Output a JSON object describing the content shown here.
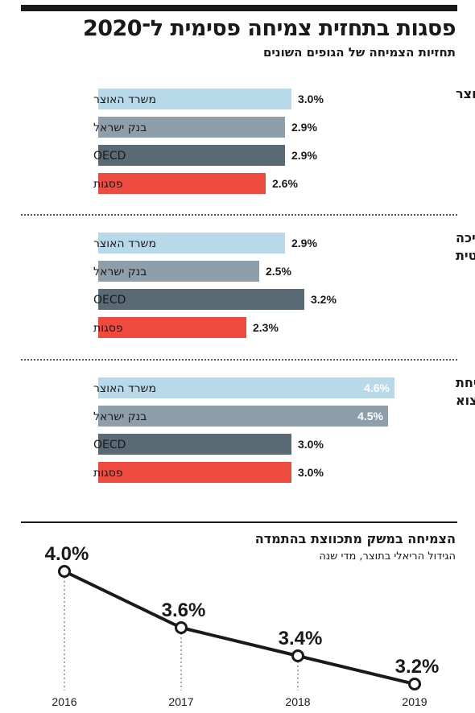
{
  "title": "פסגות בתחזית צמיחה פסימית ל־2020",
  "subtitle": "תחזיות הצמיחה של הגופים השונים",
  "colors": {
    "misrad_haotzar": "#b8d9ea",
    "bank_israel": "#8e9fab",
    "oecd": "#596a75",
    "psagot": "#ef4a3f",
    "text": "#1a1a1a"
  },
  "chart_data": [
    {
      "type": "bar",
      "orientation": "horizontal",
      "groups": [
        {
          "label": "צמיחת התוצר",
          "bars": [
            {
              "name": "משרד האוצר",
              "value": 3.0,
              "label": "3.0%"
            },
            {
              "name": "בנק ישראל",
              "value": 2.9,
              "label": "2.9%"
            },
            {
              "name": "OECD",
              "value": 2.9,
              "label": "2.9%"
            },
            {
              "name": "פסגות",
              "value": 2.6,
              "label": "2.6%"
            }
          ]
        },
        {
          "label": "צמיחת הצריכה הפרטית",
          "bars": [
            {
              "name": "משרד האוצר",
              "value": 2.9,
              "label": "2.9%"
            },
            {
              "name": "בנק ישראל",
              "value": 2.5,
              "label": "2.5%"
            },
            {
              "name": "OECD",
              "value": 3.2,
              "label": "3.2%"
            },
            {
              "name": "פסגות",
              "value": 2.3,
              "label": "2.3%"
            }
          ]
        },
        {
          "label": "צמיחת היצוא",
          "bars": [
            {
              "name": "משרד האוצר",
              "value": 4.6,
              "label": "4.6%"
            },
            {
              "name": "בנק ישראל",
              "value": 4.5,
              "label": "4.5%"
            },
            {
              "name": "OECD",
              "value": 3.0,
              "label": "3.0%"
            },
            {
              "name": "פסגות",
              "value": 3.0,
              "label": "3.0%"
            }
          ]
        }
      ]
    },
    {
      "type": "line",
      "title": "הצמיחה במשק מתכווצת בהתמדה",
      "subtitle": "הגידול הריאלי בתוצר, מדי שנה",
      "x": [
        "2016",
        "2017",
        "2018",
        "2019"
      ],
      "values": [
        4.0,
        3.6,
        3.4,
        3.2
      ],
      "labels": [
        "4.0%",
        "3.6%",
        "3.4%",
        "3.2%"
      ]
    }
  ]
}
